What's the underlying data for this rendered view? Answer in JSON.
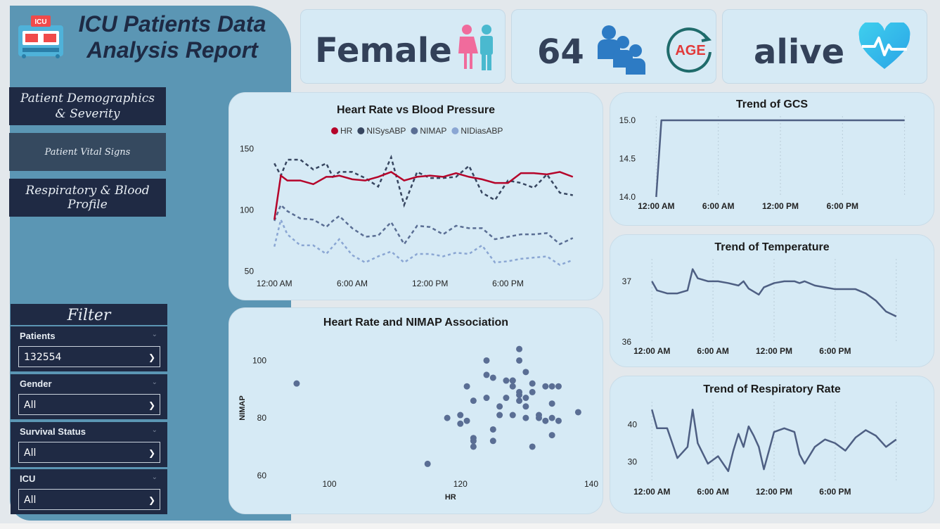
{
  "header": {
    "title_line1": "ICU Patients Data",
    "title_line2": "Analysis Report",
    "logo_text": "ICU"
  },
  "nav": [
    {
      "label": "Patient Demographics & Severity",
      "active": false
    },
    {
      "label": "Patient Vital Signs",
      "active": true
    },
    {
      "label": "Respiratory & Blood Profile",
      "active": false
    }
  ],
  "filter": {
    "title": "Filter",
    "slicers": [
      {
        "label": "Patients",
        "value": "132554"
      },
      {
        "label": "Gender",
        "value": "All"
      },
      {
        "label": "Survival Status",
        "value": "All"
      },
      {
        "label": "ICU",
        "value": "All"
      }
    ]
  },
  "kpis": {
    "gender": "Female",
    "age": "64",
    "age_icon_text": "AGE",
    "status": "alive"
  },
  "colors": {
    "hr": "#b5042a",
    "sys": "#374660",
    "map": "#5a6e94",
    "dias": "#8aa6d3",
    "line": "#4e5f83"
  },
  "chart_data": [
    {
      "type": "line",
      "title": "Heart Rate vs Blood Pressure",
      "x_ticks": [
        "12:00 AM",
        "6:00 AM",
        "12:00 PM",
        "6:00 PM"
      ],
      "x_hours": [
        0,
        6,
        12,
        18
      ],
      "y_ticks": [
        50,
        100,
        150
      ],
      "ylim": [
        45,
        160
      ],
      "xlim": [
        -0.5,
        23.5
      ],
      "legend_position": "top-center",
      "series": [
        {
          "name": "HR",
          "style": "solid",
          "x": [
            0,
            0.5,
            1,
            2,
            3,
            4,
            4.5,
            5,
            6,
            7,
            8,
            9,
            10,
            11,
            12,
            13,
            14,
            15,
            16,
            17,
            18,
            19,
            20,
            21,
            22,
            23
          ],
          "values": [
            92,
            128,
            124,
            124,
            121,
            127,
            127,
            128,
            125,
            124,
            127,
            131,
            124,
            127,
            128,
            127,
            130,
            127,
            125,
            122,
            122,
            130,
            130,
            129,
            131,
            127
          ]
        },
        {
          "name": "NISysABP",
          "style": "dashed",
          "x": [
            0,
            0.5,
            1,
            2,
            3,
            4,
            4.5,
            5,
            6,
            7,
            8,
            9,
            10,
            11,
            12,
            13,
            14,
            15,
            16,
            17,
            18,
            19,
            20,
            21,
            22,
            23
          ],
          "values": [
            138,
            128,
            141,
            141,
            133,
            138,
            127,
            131,
            131,
            126,
            119,
            143,
            104,
            131,
            126,
            126,
            127,
            136,
            114,
            108,
            124,
            122,
            118,
            129,
            114,
            112
          ]
        },
        {
          "name": "NIMAP",
          "style": "dashed",
          "x": [
            0,
            0.5,
            1,
            2,
            3,
            4,
            4.5,
            5,
            6,
            7,
            8,
            9,
            10,
            11,
            12,
            13,
            14,
            15,
            16,
            17,
            18,
            19,
            20,
            21,
            22,
            23
          ],
          "values": [
            91,
            104,
            99,
            93,
            92,
            86,
            91,
            95,
            85,
            78,
            79,
            90,
            72,
            87,
            86,
            80,
            87,
            85,
            85,
            76,
            78,
            80,
            80,
            81,
            72,
            77
          ]
        },
        {
          "name": "NIDiasABP",
          "style": "dotted",
          "x": [
            0,
            0.5,
            1,
            2,
            3,
            4,
            4.5,
            5,
            6,
            7,
            8,
            9,
            10,
            11,
            12,
            13,
            14,
            15,
            16,
            17,
            18,
            19,
            20,
            21,
            22,
            23
          ],
          "values": [
            70,
            92,
            80,
            71,
            71,
            64,
            70,
            76,
            63,
            57,
            62,
            66,
            57,
            64,
            64,
            62,
            65,
            64,
            71,
            57,
            58,
            60,
            61,
            62,
            55,
            59
          ]
        }
      ]
    },
    {
      "type": "scatter",
      "title": "Heart Rate and NIMAP Association",
      "xlabel": "HR",
      "ylabel": "NIMAP",
      "xlim": [
        92,
        140
      ],
      "ylim": [
        57,
        106
      ],
      "x_ticks": [
        100,
        120,
        140
      ],
      "y_ticks": [
        60,
        80,
        100
      ],
      "points": [
        [
          95,
          92
        ],
        [
          115,
          64
        ],
        [
          118,
          80
        ],
        [
          120,
          81
        ],
        [
          120,
          78
        ],
        [
          121,
          91
        ],
        [
          121,
          79
        ],
        [
          122,
          73
        ],
        [
          122,
          72
        ],
        [
          122,
          70
        ],
        [
          122,
          86
        ],
        [
          124,
          87
        ],
        [
          124,
          95
        ],
        [
          124,
          100
        ],
        [
          125,
          94
        ],
        [
          125,
          76
        ],
        [
          125,
          72
        ],
        [
          126,
          84
        ],
        [
          126,
          81
        ],
        [
          127,
          87
        ],
        [
          127,
          93
        ],
        [
          128,
          93
        ],
        [
          128,
          91
        ],
        [
          128,
          81
        ],
        [
          128,
          93
        ],
        [
          129,
          104
        ],
        [
          129,
          100
        ],
        [
          129,
          89
        ],
        [
          129,
          88
        ],
        [
          129,
          86
        ],
        [
          130,
          84
        ],
        [
          130,
          80
        ],
        [
          130,
          87
        ],
        [
          130,
          96
        ],
        [
          131,
          92
        ],
        [
          131,
          89
        ],
        [
          131,
          70
        ],
        [
          132,
          80
        ],
        [
          132,
          81
        ],
        [
          133,
          79
        ],
        [
          133,
          91
        ],
        [
          134,
          85
        ],
        [
          134,
          80
        ],
        [
          134,
          74
        ],
        [
          134,
          91
        ],
        [
          135,
          79
        ],
        [
          135,
          91
        ],
        [
          138,
          82
        ]
      ]
    },
    {
      "type": "line",
      "title": "Trend of GCS",
      "x_ticks": [
        "12:00 AM",
        "6:00 AM",
        "12:00 PM",
        "6:00 PM"
      ],
      "x_hours": [
        0,
        6,
        12,
        18
      ],
      "xlim": [
        -0.5,
        24.5
      ],
      "y_ticks": [
        "14.0",
        "14.5",
        "15.0"
      ],
      "ylim": [
        14,
        15
      ],
      "x": [
        0,
        0.5,
        24
      ],
      "values": [
        14.0,
        15.0,
        15.0
      ]
    },
    {
      "type": "line",
      "title": "Trend of Temperature",
      "x_ticks": [
        "12:00 AM",
        "6:00 AM",
        "12:00 PM",
        "6:00 PM"
      ],
      "x_hours": [
        0,
        6,
        12,
        18
      ],
      "xlim": [
        -0.5,
        24.5
      ],
      "y_ticks": [
        "36",
        "37"
      ],
      "ylim": [
        36,
        37.3
      ],
      "x": [
        0,
        0.5,
        1.5,
        2.5,
        3.5,
        4,
        4.5,
        5.5,
        6.5,
        7.5,
        8.5,
        9,
        9.5,
        10.5,
        11,
        12,
        13,
        14,
        14.5,
        15,
        16,
        17,
        18,
        19,
        20,
        21,
        22,
        23,
        24
      ],
      "values": [
        37.0,
        36.85,
        36.8,
        36.8,
        36.85,
        37.2,
        37.05,
        37.0,
        37.0,
        36.97,
        36.93,
        37.0,
        36.88,
        36.78,
        36.9,
        36.97,
        37.0,
        37.0,
        36.97,
        37.0,
        36.93,
        36.9,
        36.87,
        36.87,
        36.87,
        36.8,
        36.68,
        36.5,
        36.42
      ]
    },
    {
      "type": "line",
      "title": "Trend of Respiratory Rate",
      "x_ticks": [
        "12:00 AM",
        "6:00 AM",
        "12:00 PM",
        "6:00 PM"
      ],
      "x_hours": [
        0,
        6,
        12,
        18
      ],
      "xlim": [
        -0.5,
        24.5
      ],
      "y_ticks": [
        "30",
        "40"
      ],
      "ylim": [
        25,
        45
      ],
      "x": [
        0,
        0.5,
        1.5,
        2.5,
        3.5,
        4,
        4.5,
        5.5,
        6.5,
        7.5,
        8,
        8.5,
        9,
        9.5,
        10,
        10.5,
        11,
        12,
        13,
        14,
        14.5,
        15,
        16,
        17,
        18,
        19,
        20,
        21,
        22,
        23,
        24
      ],
      "values": [
        44,
        39,
        39,
        31,
        34,
        44,
        35,
        29.5,
        31.5,
        27.5,
        33,
        37.5,
        34,
        39.5,
        37,
        34,
        28,
        38,
        39,
        38,
        32,
        29.5,
        34,
        36,
        35,
        33,
        36.5,
        38.5,
        37,
        34,
        36
      ]
    }
  ]
}
